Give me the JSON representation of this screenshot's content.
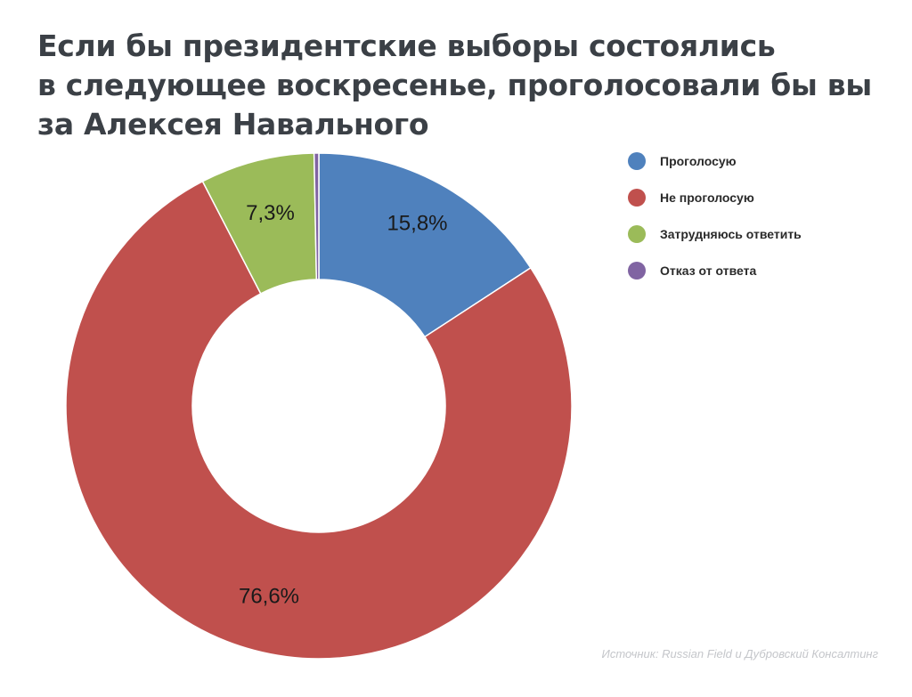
{
  "title_lines": [
    "Если бы президентские выборы состоялись",
    "в следующее воскресенье, проголосовали бы вы",
    "за Алексея Навального"
  ],
  "chart_data": {
    "type": "pie",
    "title": "Если бы президентские выборы состоялись в следующее воскресенье, проголосовали бы вы за Алексея Навального",
    "donut": true,
    "legend_position": "right",
    "slices": [
      {
        "label": "Проголосую",
        "value": 15.8,
        "value_label": "15,8%",
        "color": "#4f81bd"
      },
      {
        "label": "Не проголосую",
        "value": 76.6,
        "value_label": "76,6%",
        "color": "#c0504d"
      },
      {
        "label": "Затрудняюсь ответить",
        "value": 7.3,
        "value_label": "7,3%",
        "color": "#9bbb59"
      },
      {
        "label": "Отказ от ответа",
        "value": 0.3,
        "value_label": "",
        "color": "#8064a2"
      }
    ]
  },
  "source": "Источник: Russian Field и Дубровский Консалтинг"
}
